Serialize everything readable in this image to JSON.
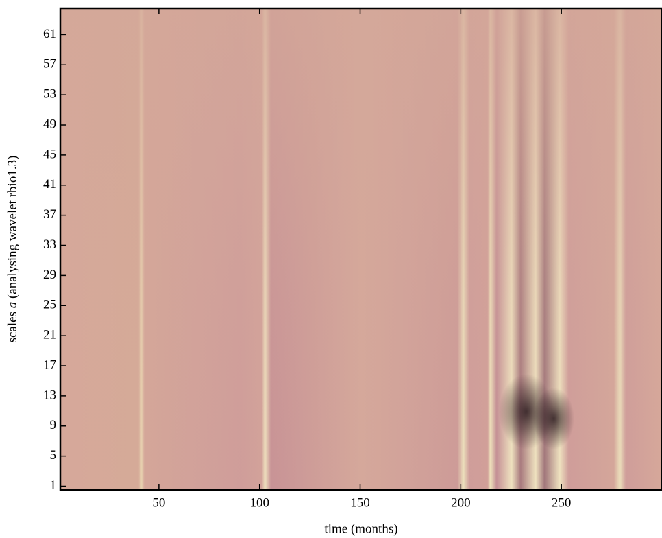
{
  "chart_data": {
    "type": "heatmap",
    "x_label": "time (months)",
    "y_label": [
      "scales ",
      "a",
      " (analysing wavelet rbio1.3)"
    ],
    "xlim": [
      1,
      300
    ],
    "xticks": [
      50,
      100,
      150,
      200,
      250
    ],
    "ylim": [
      0.5,
      64.5
    ],
    "yticks": [
      1,
      5,
      9,
      13,
      17,
      21,
      25,
      29,
      33,
      37,
      41,
      45,
      49,
      53,
      57,
      61
    ]
  }
}
